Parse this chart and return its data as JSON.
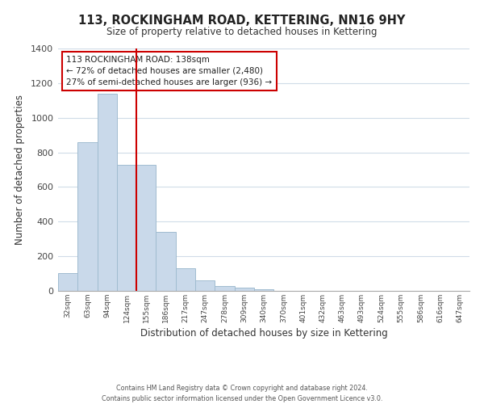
{
  "title": "113, ROCKINGHAM ROAD, KETTERING, NN16 9HY",
  "subtitle": "Size of property relative to detached houses in Kettering",
  "xlabel": "Distribution of detached houses by size in Kettering",
  "ylabel": "Number of detached properties",
  "bar_labels": [
    "32sqm",
    "63sqm",
    "94sqm",
    "124sqm",
    "155sqm",
    "186sqm",
    "217sqm",
    "247sqm",
    "278sqm",
    "309sqm",
    "340sqm",
    "370sqm",
    "401sqm",
    "432sqm",
    "463sqm",
    "493sqm",
    "524sqm",
    "555sqm",
    "586sqm",
    "616sqm",
    "647sqm"
  ],
  "bar_values": [
    105,
    860,
    1140,
    730,
    730,
    340,
    130,
    60,
    30,
    18,
    10,
    0,
    0,
    0,
    0,
    0,
    0,
    0,
    0,
    0,
    0
  ],
  "bar_color": "#c9d9ea",
  "bar_edge_color": "#a0bcd0",
  "vline_color": "#cc0000",
  "ylim": [
    0,
    1400
  ],
  "yticks": [
    0,
    200,
    400,
    600,
    800,
    1000,
    1200,
    1400
  ],
  "annotation_title": "113 ROCKINGHAM ROAD: 138sqm",
  "annotation_line1": "← 72% of detached houses are smaller (2,480)",
  "annotation_line2": "27% of semi-detached houses are larger (936) →",
  "annotation_box_color": "#ffffff",
  "annotation_box_edge": "#cc0000",
  "footer_line1": "Contains HM Land Registry data © Crown copyright and database right 2024.",
  "footer_line2": "Contains public sector information licensed under the Open Government Licence v3.0.",
  "background_color": "#ffffff",
  "grid_color": "#d0dce8"
}
